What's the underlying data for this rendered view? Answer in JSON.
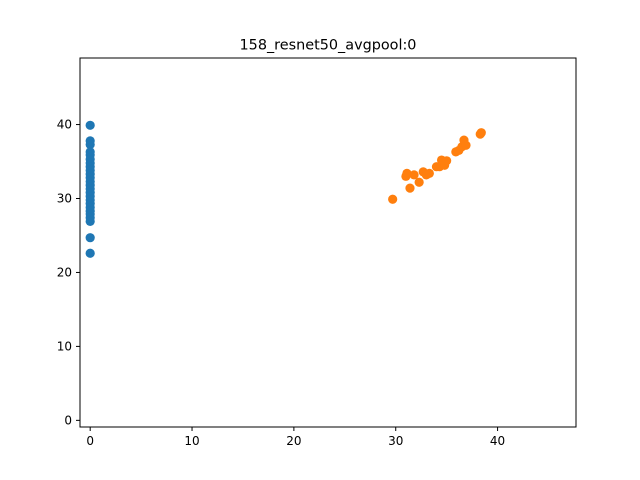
{
  "chart_data": {
    "type": "scatter",
    "title": "158_resnet50_avgpool:0",
    "xlabel": "",
    "ylabel": "",
    "xlim": [
      -1.0,
      47.7
    ],
    "ylim": [
      -0.9,
      49.0
    ],
    "grid": false,
    "x_ticks": [
      0,
      10,
      20,
      30,
      40
    ],
    "y_ticks": [
      0,
      10,
      20,
      30,
      40
    ],
    "series": [
      {
        "color": "#1f77b4",
        "points": [
          [
            0,
            39.9
          ],
          [
            0,
            37.8
          ],
          [
            0,
            37.3
          ],
          [
            0,
            36.3
          ],
          [
            0,
            35.9
          ],
          [
            0,
            35.3
          ],
          [
            0,
            34.8
          ],
          [
            0,
            34.3
          ],
          [
            0,
            33.8
          ],
          [
            0,
            33.3
          ],
          [
            0,
            32.8
          ],
          [
            0,
            32.3
          ],
          [
            0,
            31.8
          ],
          [
            0,
            31.3
          ],
          [
            0,
            30.8
          ],
          [
            0,
            30.3
          ],
          [
            0,
            29.8
          ],
          [
            0,
            29.3
          ],
          [
            0,
            28.8
          ],
          [
            0,
            28.3
          ],
          [
            0,
            27.9
          ],
          [
            0,
            27.4
          ],
          [
            0,
            26.9
          ],
          [
            0,
            24.7
          ],
          [
            0,
            22.6
          ]
        ]
      },
      {
        "color": "#ff7f0e",
        "points": [
          [
            29.7,
            29.9
          ],
          [
            31.0,
            33.0
          ],
          [
            31.1,
            33.4
          ],
          [
            31.4,
            31.4
          ],
          [
            31.8,
            33.2
          ],
          [
            32.3,
            32.2
          ],
          [
            32.7,
            33.6
          ],
          [
            33.0,
            33.2
          ],
          [
            33.3,
            33.4
          ],
          [
            34.0,
            34.3
          ],
          [
            34.3,
            34.3
          ],
          [
            34.5,
            35.2
          ],
          [
            34.8,
            34.5
          ],
          [
            35.0,
            35.1
          ],
          [
            35.9,
            36.3
          ],
          [
            36.2,
            36.5
          ],
          [
            36.5,
            37.0
          ],
          [
            36.7,
            37.9
          ],
          [
            36.9,
            37.2
          ],
          [
            38.3,
            38.7
          ],
          [
            38.4,
            38.9
          ]
        ]
      }
    ]
  }
}
